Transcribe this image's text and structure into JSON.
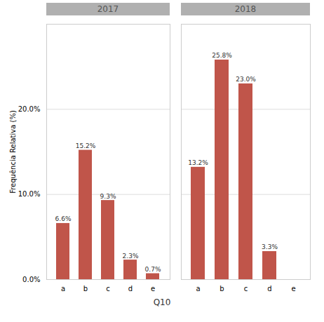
{
  "chart_data": [
    {
      "type": "bar",
      "title": "2017",
      "ylabel": "Frequência Relativa (%)",
      "xlabel": "Q10",
      "categories": [
        "a",
        "b",
        "c",
        "d",
        "e"
      ],
      "values": [
        6.6,
        15.2,
        9.3,
        2.3,
        0.7
      ],
      "value_labels": [
        "6.6%",
        "15.2%",
        "9.3%",
        "2.3%",
        "0.7%"
      ],
      "color": "#c0554a",
      "ylim": [
        0,
        30
      ],
      "yticks": [
        {
          "value": 0,
          "label": "0.0%"
        },
        {
          "value": 10.0,
          "label": "10.0%"
        },
        {
          "value": 20.0,
          "label": "20.0%"
        }
      ],
      "grid": true,
      "data_labels": true
    },
    {
      "type": "bar",
      "title": "2018",
      "categories": [
        "a",
        "b",
        "c",
        "d",
        "e"
      ],
      "values": [
        13.2,
        25.8,
        23.0,
        3.3,
        0.0
      ],
      "value_labels": [
        "13.2%",
        "25.8%",
        "23.0%",
        "3.3%",
        null
      ],
      "color": "#c0554a",
      "ylim": [
        0,
        30
      ],
      "yticks": [
        {
          "value": 0,
          "label": "0.0%"
        },
        {
          "value": 10.0,
          "label": "10.0%"
        },
        {
          "value": 20.0,
          "label": "20.0%"
        }
      ],
      "grid": true,
      "data_labels": true,
      "tick_labels": "x"
    }
  ]
}
